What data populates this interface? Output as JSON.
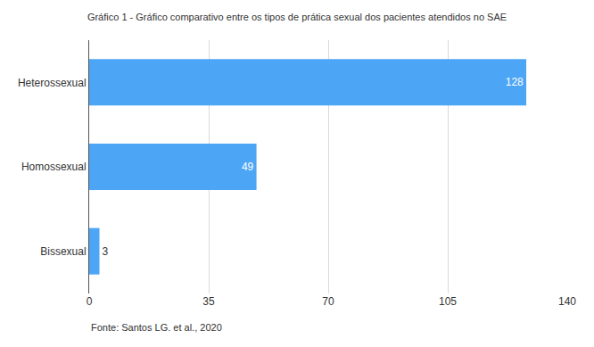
{
  "chart_data": {
    "type": "bar",
    "orientation": "horizontal",
    "title": "Gráfico 1 - Gráfico comparativo entre os tipos de prática sexual dos pacientes atendidos no SAE",
    "categories": [
      "Heterossexual",
      "Homossexual",
      "Bissexual"
    ],
    "values": [
      128,
      49,
      3
    ],
    "color": "#4da6f5",
    "xlim": [
      0,
      140
    ],
    "xticks": [
      0,
      35,
      70,
      105,
      140
    ],
    "grid": true,
    "data_labels": true,
    "annotations": [
      "Fonte: Santos LG. et al., 2020"
    ]
  }
}
